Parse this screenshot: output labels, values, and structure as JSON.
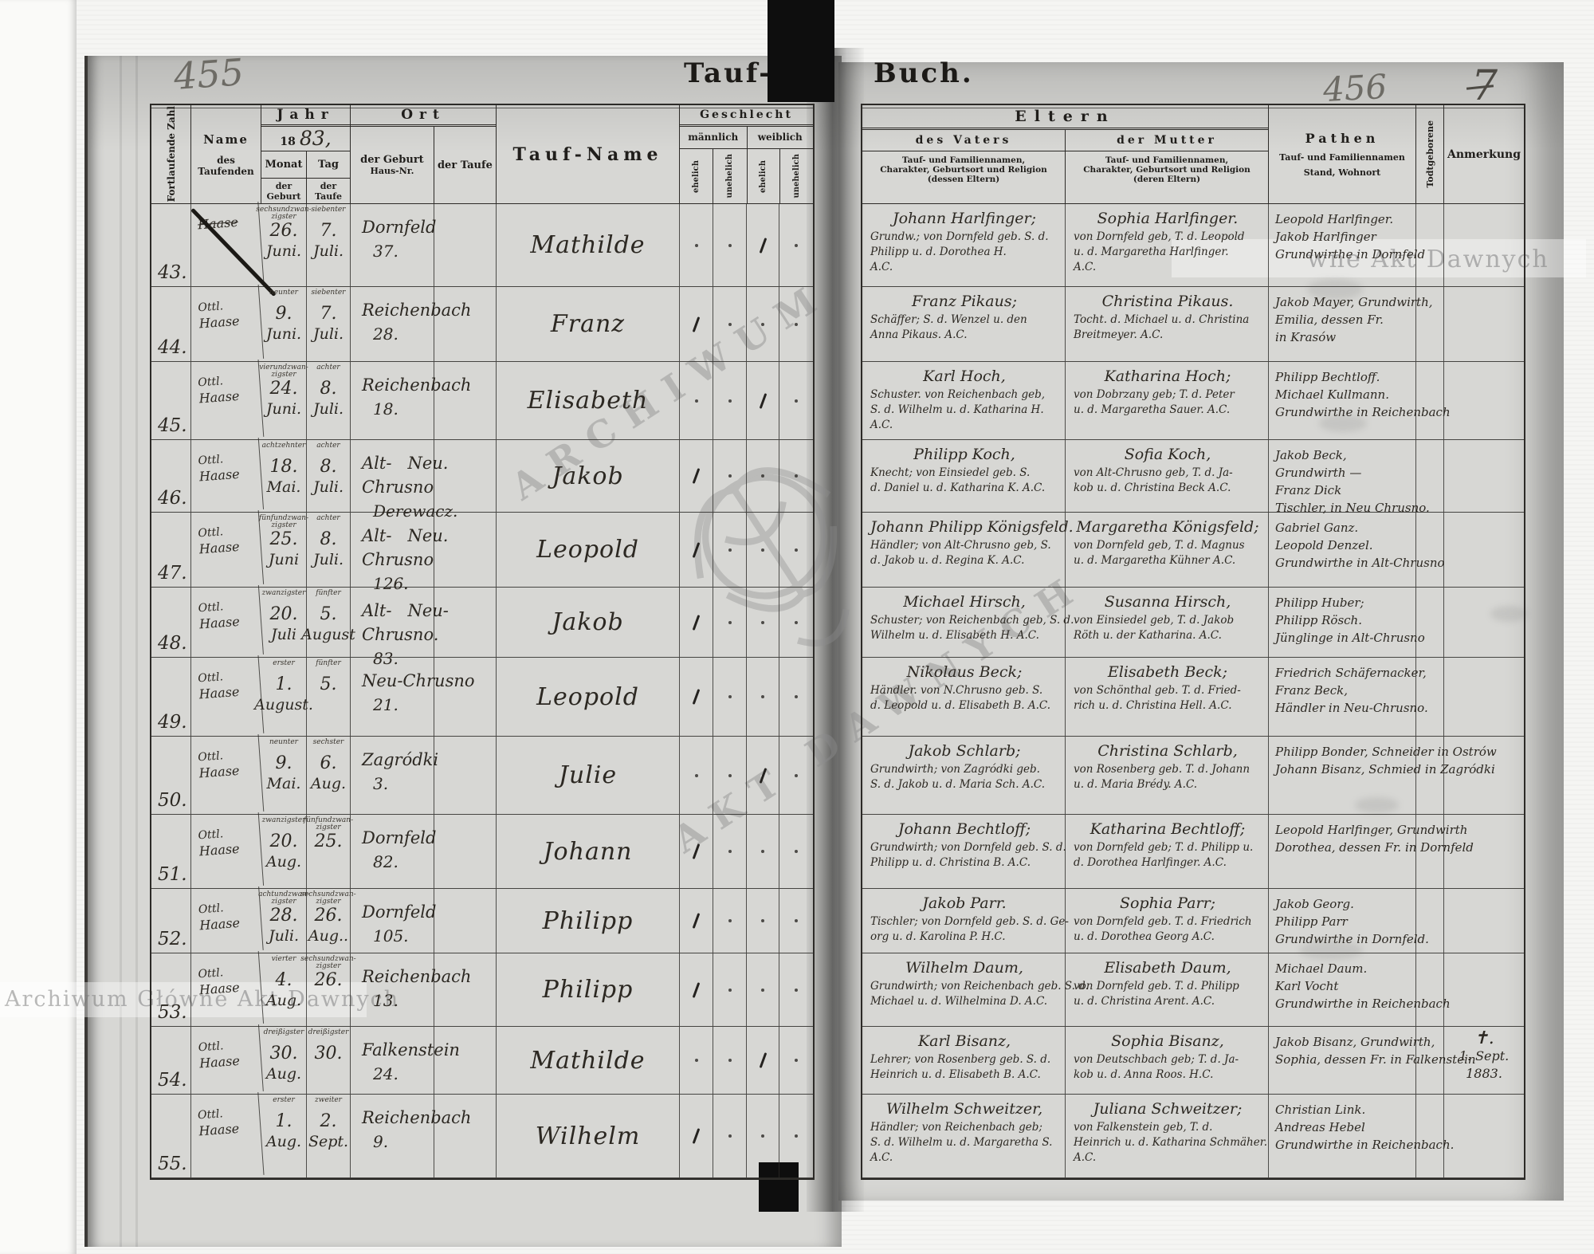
{
  "page": {
    "left_folio": "455",
    "right_folio": "456",
    "corner_note": "7",
    "title_left": "Tauf-",
    "title_right": "Buch.",
    "year_printed": "18",
    "year_hand": "83,"
  },
  "watermarks": {
    "top_right": "wne Akt Dawnych",
    "bottom_left": "Archiwum Główne Akt Dawnych",
    "stamp_line1": "ARCHIWUM",
    "stamp_line2": "AKT DAWNYCH"
  },
  "left_header": {
    "col_zahl": "Fortlaufende Zahl",
    "col_name_1": "Name",
    "col_name_2": "des Taufenden",
    "jahr": "Jahr",
    "monat": "Monat",
    "tag": "Tag",
    "monat_sub": "der Geburt",
    "tag_sub": "der Taufe",
    "ort": "Ort",
    "ort_geburt_1": "der Geburt",
    "ort_geburt_2": "Haus-Nr.",
    "ort_taufe": "der Taufe",
    "taufname": "Tauf-Name",
    "geschlecht": "Geschlecht",
    "maennlich": "männlich",
    "weiblich": "weiblich",
    "ehelich": "ehelich",
    "unehelich": "unehelich"
  },
  "right_header": {
    "eltern": "Eltern",
    "vater": "des Vaters",
    "mutter": "der Mutter",
    "vater_caption": [
      "Tauf- und Familiennamen,",
      "Charakter, Geburtsort und Religion",
      "(dessen Eltern)"
    ],
    "mutter_caption": [
      "Tauf- und Familiennamen,",
      "Charakter, Geburtsort und Religion",
      "(deren Eltern)"
    ],
    "pathen": "Pathen",
    "pathen_caption": [
      "Tauf- und Familiennamen",
      "Stand, Wohnort"
    ],
    "todtgeborene": "Todtgeborene",
    "anmerkung": "Anmerkung"
  },
  "rows": [
    {
      "nr": "43.",
      "name": [
        "Haase"
      ],
      "crossed": true,
      "geb_k": "sechsundzwan- zigster",
      "geb": [
        "26.",
        "Juni."
      ],
      "tauf_k": "siebenter",
      "tauf": [
        "7.",
        "Juli."
      ],
      "ort": [
        "Dornfeld",
        "37."
      ],
      "taufname": "Mathilde",
      "sex": "we",
      "vater": [
        "Johann Harlfinger;",
        "Grundw.; von Dornfeld geb. S. d.",
        "Philipp u. d. Dorothea H.",
        "A.C."
      ],
      "mutter": [
        "Sophia Harlfinger.",
        "von Dornfeld geb, T. d. Leopold",
        "u. d. Margaretha Harlfinger.",
        "A.C."
      ],
      "pathen": [
        "Leopold Harlfinger.",
        "Jakob Harlfinger",
        "Grundwirthe in Dornfeld"
      ],
      "anm": []
    },
    {
      "nr": "44.",
      "name": [
        "Ottl.",
        "Haase"
      ],
      "geb_k": "neunter",
      "geb": [
        "9.",
        "Juni."
      ],
      "tauf_k": "siebenter",
      "tauf": [
        "7.",
        "Juli."
      ],
      "ort": [
        "Reichenbach",
        "28."
      ],
      "taufname": "Franz",
      "sex": "me",
      "vater": [
        "Franz Pikaus;",
        "Schäffer; S. d. Wenzel u. den",
        "Anna Pikaus. A.C."
      ],
      "mutter": [
        "Christina Pikaus.",
        "Tocht. d. Michael u. d. Christina",
        "Breitmeyer. A.C."
      ],
      "pathen": [
        "Jakob Mayer, Grundwirth,",
        "Emilia, dessen Fr.",
        "in Krasów"
      ],
      "anm": []
    },
    {
      "nr": "45.",
      "name": [
        "Ottl.",
        "Haase"
      ],
      "geb_k": "vierundzwan- zigster",
      "geb": [
        "24.",
        "Juni."
      ],
      "tauf_k": "achter",
      "tauf": [
        "8.",
        "Juli."
      ],
      "ort": [
        "Reichenbach",
        "18."
      ],
      "taufname": "Elisabeth",
      "sex": "we",
      "vater": [
        "Karl Hoch,",
        "Schuster. von Reichenbach geb,",
        "S. d. Wilhelm u. d. Katharina H.",
        "A.C."
      ],
      "mutter": [
        "Katharina Hoch;",
        "von Dobrzany geb; T. d. Peter",
        "u. d. Margaretha Sauer. A.C."
      ],
      "pathen": [
        "Philipp Bechtloff.",
        "Michael Kullmann.",
        "Grundwirthe in Reichenbach"
      ],
      "anm": []
    },
    {
      "nr": "46.",
      "name": [
        "Ottl.",
        "Haase"
      ],
      "geb_k": "achtzehnter",
      "geb": [
        "18.",
        "Mai."
      ],
      "tauf_k": "achter",
      "tauf": [
        "8.",
        "Juli."
      ],
      "ort": [
        "Alt-   Neu.",
        "Chrusno",
        "Derewacz."
      ],
      "taufname": "Jakob",
      "sex": "me",
      "vater": [
        "Philipp Koch,",
        "Knecht; von Einsiedel geb. S.",
        "d. Daniel u. d. Katharina K. A.C."
      ],
      "mutter": [
        "Sofia Koch,",
        "von Alt-Chrusno geb, T. d. Ja-",
        "kob u. d. Christina Beck A.C."
      ],
      "pathen": [
        "Jakob Beck,",
        "Grundwirth —",
        "Franz Dick",
        "Tischler, in Neu Chrusno."
      ],
      "anm": []
    },
    {
      "nr": "47.",
      "name": [
        "Ottl.",
        "Haase"
      ],
      "geb_k": "fünfundzwan- zigster",
      "geb": [
        "25.",
        "Juni"
      ],
      "tauf_k": "achter",
      "tauf": [
        "8.",
        "Juli."
      ],
      "ort": [
        "Alt-   Neu.",
        "Chrusno",
        "126."
      ],
      "taufname": "Leopold",
      "sex": "me",
      "vater": [
        "Johann Philipp Königsfeld.",
        "Händler; von Alt-Chrusno geb, S.",
        "d. Jakob u. d. Regina K. A.C."
      ],
      "mutter": [
        "Margaretha Königsfeld;",
        "von Dornfeld geb, T. d. Magnus",
        "u. d. Margaretha Kühner A.C."
      ],
      "pathen": [
        "Gabriel Ganz.",
        "Leopold Denzel.",
        "Grundwirthe in Alt-Chrusno"
      ],
      "anm": []
    },
    {
      "nr": "48.",
      "name": [
        "Ottl.",
        "Haase"
      ],
      "geb_k": "zwanzigster",
      "geb": [
        "20.",
        "Juli"
      ],
      "tauf_k": "fünfter",
      "tauf": [
        "5.",
        "August"
      ],
      "ort": [
        "Alt-   Neu-",
        "Chrusno.",
        "83."
      ],
      "taufname": "Jakob",
      "sex": "me",
      "vater": [
        "Michael Hirsch,",
        "Schuster; von Reichenbach geb, S. d.",
        "Wilhelm u. d. Elisabeth H. A.C."
      ],
      "mutter": [
        "Susanna Hirsch,",
        "von Einsiedel geb, T. d. Jakob",
        "Röth u. der Katharina. A.C."
      ],
      "pathen": [
        "Philipp Huber;",
        "Philipp Rösch.",
        "Jünglinge in Alt-Chrusno"
      ],
      "anm": []
    },
    {
      "nr": "49.",
      "name": [
        "Ottl.",
        "Haase"
      ],
      "geb_k": "erster",
      "geb": [
        "1.",
        "August."
      ],
      "tauf_k": "fünfter",
      "tauf": [
        "5.",
        ""
      ],
      "ort": [
        "Neu-Chrusno",
        "21."
      ],
      "taufname": "Leopold",
      "sex": "me",
      "vater": [
        "Nikolaus Beck;",
        "Händler. von N.Chrusno geb. S.",
        "d. Leopold u. d. Elisabeth B. A.C."
      ],
      "mutter": [
        "Elisabeth Beck;",
        "von Schönthal geb. T. d. Fried-",
        "rich u. d. Christina Hell. A.C."
      ],
      "pathen": [
        "Friedrich Schäfernacker,",
        "Franz Beck,",
        "Händler in Neu-Chrusno."
      ],
      "anm": []
    },
    {
      "nr": "50.",
      "name": [
        "Ottl.",
        "Haase"
      ],
      "geb_k": "neunter",
      "geb": [
        "9.",
        "Mai."
      ],
      "tauf_k": "sechster",
      "tauf": [
        "6.",
        "Aug."
      ],
      "ort": [
        "Zagródki",
        "3."
      ],
      "taufname": "Julie",
      "sex": "we",
      "vater": [
        "Jakob Schlarb;",
        "Grundwirth; von Zagródki geb.",
        "S. d. Jakob u. d. Maria Sch. A.C."
      ],
      "mutter": [
        "Christina Schlarb,",
        "von Rosenberg geb. T. d. Johann",
        "u. d. Maria Brédy. A.C."
      ],
      "pathen": [
        "Philipp Bonder, Schneider in Ostrów",
        "Johann Bisanz, Schmied in Zagródki"
      ],
      "anm": []
    },
    {
      "nr": "51.",
      "name": [
        "Ottl.",
        "Haase"
      ],
      "geb_k": "zwanzigster",
      "geb": [
        "20.",
        "Aug."
      ],
      "tauf_k": "fünfundzwan- zigster",
      "tauf": [
        "25.",
        ""
      ],
      "ort": [
        "Dornfeld",
        "82."
      ],
      "taufname": "Johann",
      "sex": "me",
      "vater": [
        "Johann Bechtloff;",
        "Grundwirth; von Dornfeld geb. S. d.",
        "Philipp u. d. Christina B. A.C."
      ],
      "mutter": [
        "Katharina Bechtloff;",
        "von Dornfeld geb; T. d. Philipp u.",
        "d. Dorothea Harlfinger. A.C."
      ],
      "pathen": [
        "Leopold Harlfinger, Grundwirth",
        "Dorothea, dessen Fr. in Dornfeld"
      ],
      "anm": []
    },
    {
      "nr": "52.",
      "name": [
        "Ottl.",
        "Haase"
      ],
      "geb_k": "achtundzwan- zigster",
      "geb": [
        "28.",
        "Juli."
      ],
      "tauf_k": "sechsundzwan- zigster",
      "tauf": [
        "26.",
        "Aug.."
      ],
      "ort": [
        "Dornfeld",
        "105."
      ],
      "taufname": "Philipp",
      "sex": "me",
      "vater": [
        "Jakob Parr.",
        "Tischler; von Dornfeld geb. S. d. Ge-",
        "org u. d. Karolina P. H.C."
      ],
      "mutter": [
        "Sophia Parr;",
        "von Dornfeld geb. T. d. Friedrich",
        "u. d. Dorothea Georg A.C."
      ],
      "pathen": [
        "Jakob Georg.",
        "Philipp Parr",
        "Grundwirthe in Dornfeld."
      ],
      "anm": []
    },
    {
      "nr": "53.",
      "name": [
        "Ottl.",
        "Haase"
      ],
      "geb_k": "vierter",
      "geb": [
        "4.",
        "Aug."
      ],
      "tauf_k": "sechsundzwan- zigster",
      "tauf": [
        "26.",
        ""
      ],
      "ort": [
        "Reichenbach",
        "13."
      ],
      "taufname": "Philipp",
      "sex": "me",
      "vater": [
        "Wilhelm Daum,",
        "Grundwirth; von Reichenbach geb. S. d.",
        "Michael u. d. Wilhelmina D. A.C."
      ],
      "mutter": [
        "Elisabeth Daum,",
        "von Dornfeld geb. T. d. Philipp",
        "u. d. Christina Arent. A.C."
      ],
      "pathen": [
        "Michael Daum.",
        "Karl Vocht",
        "Grundwirthe in Reichenbach"
      ],
      "anm": []
    },
    {
      "nr": "54.",
      "name": [
        "Ottl.",
        "Haase"
      ],
      "geb_k": "dreißigster",
      "geb": [
        "30.",
        "Aug."
      ],
      "tauf_k": "dreißigster",
      "tauf": [
        "30.",
        ""
      ],
      "ort": [
        "Falkenstein",
        "24."
      ],
      "taufname": "Mathilde",
      "sex": "we",
      "vater": [
        "Karl Bisanz,",
        "Lehrer; von Rosenberg geb. S. d.",
        "Heinrich u. d. Elisabeth B. A.C."
      ],
      "mutter": [
        "Sophia Bisanz,",
        "von Deutschbach geb; T. d. Ja-",
        "kob u. d. Anna Roos. H.C."
      ],
      "pathen": [
        "Jakob Bisanz, Grundwirth,",
        "Sophia, dessen Fr. in Falkenstein"
      ],
      "anm": [
        "✝.",
        "1. Sept.",
        "1883."
      ]
    },
    {
      "nr": "55.",
      "name": [
        "Ottl.",
        "Haase"
      ],
      "geb_k": "erster",
      "geb": [
        "1.",
        "Aug."
      ],
      "tauf_k": "zweiter",
      "tauf": [
        "2.",
        "Sept."
      ],
      "ort": [
        "Reichenbach",
        "9."
      ],
      "taufname": "Wilhelm",
      "sex": "me",
      "vater": [
        "Wilhelm Schweitzer,",
        "Händler; von Reichenbach geb;",
        "S. d. Wilhelm u. d. Margaretha S.",
        "A.C."
      ],
      "mutter": [
        "Juliana Schweitzer;",
        "von Falkenstein geb, T. d.",
        "Heinrich u. d. Katharina Schmäher.",
        "A.C."
      ],
      "pathen": [
        "Christian Link.",
        "Andreas Hebel",
        "Grundwirthe in Reichenbach."
      ],
      "anm": []
    }
  ]
}
